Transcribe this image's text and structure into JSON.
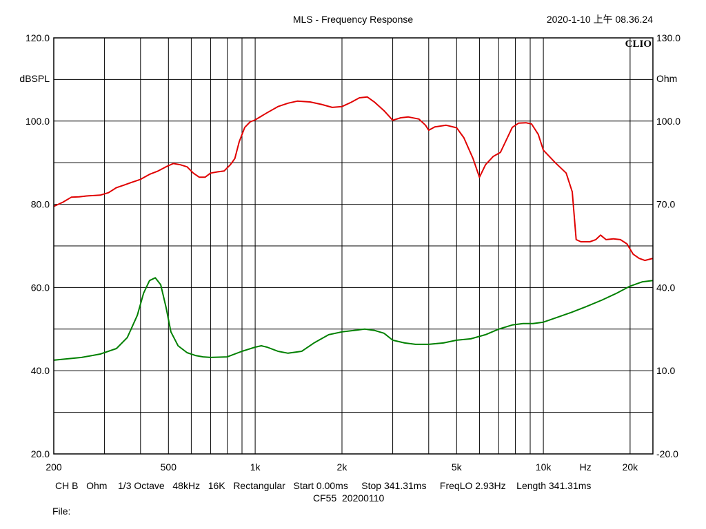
{
  "header": {
    "title": "MLS - Frequency Response",
    "timestamp": "2020-1-10 上午 08.36.24",
    "brand": "CLIO"
  },
  "footer": {
    "settings": "CH B   Ohm    1/3 Octave   48kHz   16K   Rectangular   Start 0.00ms     Stop 341.31ms     FreqLO 2.93Hz    Length 341.31ms",
    "name": "CF55  20200110",
    "file_label": "File:"
  },
  "chart_data": {
    "type": "line",
    "title": "MLS - Frequency Response",
    "xscale": "log",
    "xlim": [
      200,
      24000
    ],
    "x_ticks": [
      {
        "value": 200,
        "label": "200"
      },
      {
        "value": 500,
        "label": "500"
      },
      {
        "value": 1000,
        "label": "1k"
      },
      {
        "value": 2000,
        "label": "2k"
      },
      {
        "value": 5000,
        "label": "5k"
      },
      {
        "value": 10000,
        "label": "10k"
      },
      {
        "value": 20000,
        "label": "20k"
      }
    ],
    "x_unit_label": "Hz",
    "y_left": {
      "label": "dBSPL",
      "ylim": [
        20,
        120
      ],
      "ticks": [
        {
          "value": 120,
          "label": "120.0"
        },
        {
          "value": 100,
          "label": "100.0"
        },
        {
          "value": 80,
          "label": "80.0"
        },
        {
          "value": 60,
          "label": "60.0"
        },
        {
          "value": 40,
          "label": "40.0"
        },
        {
          "value": 20,
          "label": "20.0"
        }
      ]
    },
    "y_right": {
      "label": "Ohm",
      "ylim": [
        -20,
        130
      ],
      "ticks": [
        {
          "value": 130,
          "label": "130.0"
        },
        {
          "value": 100,
          "label": "100.0"
        },
        {
          "value": 70,
          "label": "70.0"
        },
        {
          "value": 40,
          "label": "40.0"
        },
        {
          "value": 10,
          "label": "10.0"
        },
        {
          "value": -20,
          "label": "-20.0"
        }
      ]
    },
    "grid": true,
    "grid_y_values": [
      110,
      90,
      70,
      50,
      30
    ],
    "series": [
      {
        "axis": "left",
        "color": "#e00000",
        "x": [
          200,
          215,
          230,
          245,
          260,
          275,
          290,
          310,
          330,
          350,
          370,
          400,
          430,
          460,
          490,
          520,
          550,
          580,
          610,
          640,
          670,
          700,
          740,
          780,
          820,
          850,
          880,
          920,
          960,
          1000,
          1100,
          1200,
          1300,
          1400,
          1550,
          1700,
          1850,
          2000,
          2150,
          2300,
          2450,
          2600,
          2800,
          3000,
          3200,
          3400,
          3700,
          3900,
          4000,
          4200,
          4600,
          5000,
          5300,
          5700,
          6000,
          6300,
          6700,
          7100,
          7500,
          7800,
          8200,
          8700,
          9100,
          9600,
          10000,
          11000,
          12000,
          12600,
          13000,
          13500,
          14500,
          15200,
          15800,
          16500,
          17500,
          18500,
          19500,
          20500,
          21500,
          22500,
          24000
        ],
        "y": [
          79.5,
          80.5,
          81.7,
          81.8,
          82.0,
          82.1,
          82.2,
          82.8,
          84.0,
          84.6,
          85.2,
          86.0,
          87.2,
          88.0,
          89.0,
          89.8,
          89.5,
          89.0,
          87.5,
          86.5,
          86.5,
          87.5,
          87.8,
          88.0,
          89.5,
          91.0,
          95.0,
          98.5,
          99.8,
          100.3,
          102.0,
          103.5,
          104.3,
          104.8,
          104.6,
          104.0,
          103.3,
          103.5,
          104.5,
          105.6,
          105.8,
          104.5,
          102.5,
          100.2,
          100.8,
          101.0,
          100.5,
          99.0,
          97.8,
          98.6,
          99.0,
          98.4,
          96.0,
          91.0,
          86.5,
          89.5,
          91.5,
          92.5,
          96.0,
          98.5,
          99.5,
          99.6,
          99.3,
          96.8,
          93.0,
          90.0,
          87.5,
          83.0,
          71.5,
          71.0,
          71.0,
          71.5,
          72.6,
          71.5,
          71.7,
          71.5,
          70.5,
          68.0,
          67.0,
          66.5,
          67.0
        ]
      },
      {
        "axis": "right",
        "color": "#008000",
        "x": [
          200,
          250,
          290,
          330,
          360,
          390,
          410,
          430,
          450,
          470,
          490,
          510,
          540,
          580,
          620,
          660,
          700,
          800,
          900,
          1000,
          1050,
          1100,
          1200,
          1300,
          1450,
          1600,
          1800,
          2000,
          2200,
          2400,
          2600,
          2800,
          3000,
          3300,
          3600,
          4000,
          4500,
          5000,
          5600,
          6300,
          7000,
          7800,
          8500,
          9200,
          10000,
          11000,
          12500,
          14000,
          16000,
          18000,
          20000,
          22000,
          24000
        ],
        "y": [
          13.8,
          14.8,
          16.0,
          18.0,
          22.0,
          30.0,
          38.0,
          42.5,
          43.5,
          41.0,
          33.0,
          24.0,
          19.0,
          16.5,
          15.5,
          15.0,
          14.8,
          15.0,
          17.0,
          18.5,
          19.0,
          18.5,
          17.0,
          16.3,
          17.0,
          20.0,
          23.0,
          24.0,
          24.5,
          25.0,
          24.5,
          23.5,
          21.0,
          20.0,
          19.5,
          19.5,
          20.0,
          21.0,
          21.5,
          23.0,
          25.0,
          26.5,
          27.0,
          27.0,
          27.5,
          29.0,
          31.0,
          33.0,
          35.5,
          38.0,
          40.5,
          42.0,
          42.5
        ]
      }
    ]
  }
}
